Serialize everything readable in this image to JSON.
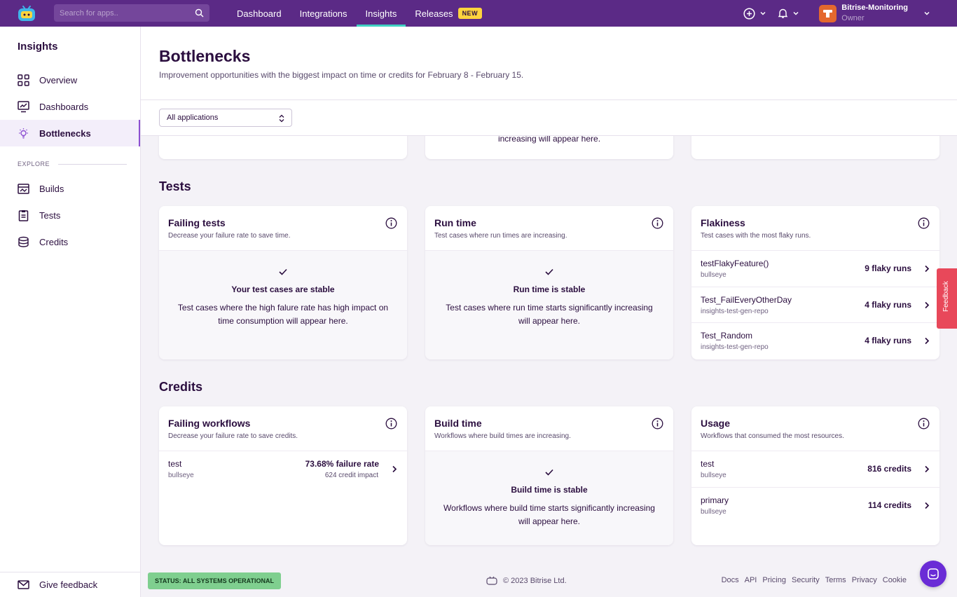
{
  "topnav": {
    "search_placeholder": "Search for apps..",
    "links": [
      {
        "label": "Dashboard"
      },
      {
        "label": "Integrations"
      },
      {
        "label": "Insights"
      },
      {
        "label": "Releases"
      }
    ],
    "releases_badge": "NEW",
    "account_name": "Bitrise-Monitoring",
    "account_role": "Owner",
    "accent_color": "#5b2a86"
  },
  "sidebar": {
    "title": "Insights",
    "items": [
      {
        "label": "Overview",
        "icon": "grid-icon"
      },
      {
        "label": "Dashboards",
        "icon": "chart-monitor-icon"
      },
      {
        "label": "Bottlenecks",
        "icon": "lightbulb-icon"
      }
    ],
    "section_label": "EXPLORE",
    "explore_items": [
      {
        "label": "Builds",
        "icon": "builds-icon"
      },
      {
        "label": "Tests",
        "icon": "clipboard-icon"
      },
      {
        "label": "Credits",
        "icon": "coins-icon"
      }
    ],
    "feedback_label": "Give feedback"
  },
  "header": {
    "title": "Bottlenecks",
    "subtitle": "Improvement opportunities with the biggest impact on time or credits for February 8 - February 15.",
    "filter_value": "All applications"
  },
  "top_cards": {
    "middle_text": "increasing will appear here."
  },
  "tests": {
    "section_title": "Tests",
    "failing": {
      "title": "Failing tests",
      "subtitle": "Decrease your failure rate to save time.",
      "empty_title": "Your test cases are stable",
      "empty_desc": "Test cases where the high falure rate has high impact on time consumption will appear here."
    },
    "runtime": {
      "title": "Run time",
      "subtitle": "Test cases where run times are increasing.",
      "empty_title": "Run time is stable",
      "empty_desc": "Test cases where run time starts significantly increasing will appear here."
    },
    "flakiness": {
      "title": "Flakiness",
      "subtitle": "Test cases with the most flaky runs.",
      "rows": [
        {
          "name": "testFlakyFeature()",
          "sub": "bullseye",
          "value": "9 flaky runs"
        },
        {
          "name": "Test_FailEveryOtherDay",
          "sub": "insights-test-gen-repo",
          "value": "4 flaky runs"
        },
        {
          "name": "Test_Random",
          "sub": "insights-test-gen-repo",
          "value": "4 flaky runs"
        }
      ]
    }
  },
  "credits": {
    "section_title": "Credits",
    "failing_workflows": {
      "title": "Failing workflows",
      "subtitle": "Decrease your failure rate to save credits.",
      "rows": [
        {
          "name": "test",
          "sub": "bullseye",
          "value": "73.68% failure rate",
          "value2": "624 credit impact"
        }
      ]
    },
    "build_time": {
      "title": "Build time",
      "subtitle": "Workflows where build times are increasing.",
      "empty_title": "Build time is stable",
      "empty_desc": "Workflows where build time starts significantly increasing will appear here."
    },
    "usage": {
      "title": "Usage",
      "subtitle": "Workflows that consumed the most resources.",
      "rows": [
        {
          "name": "test",
          "sub": "bullseye",
          "value": "816 credits"
        },
        {
          "name": "primary",
          "sub": "bullseye",
          "value": "114 credits"
        }
      ]
    }
  },
  "footer": {
    "status": "STATUS: ALL SYSTEMS OPERATIONAL",
    "copyright": "© 2023 Bitrise Ltd.",
    "links": [
      "Docs",
      "API",
      "Pricing",
      "Security",
      "Terms",
      "Privacy",
      "Cookie"
    ]
  },
  "feedback_tab": "Feedback"
}
